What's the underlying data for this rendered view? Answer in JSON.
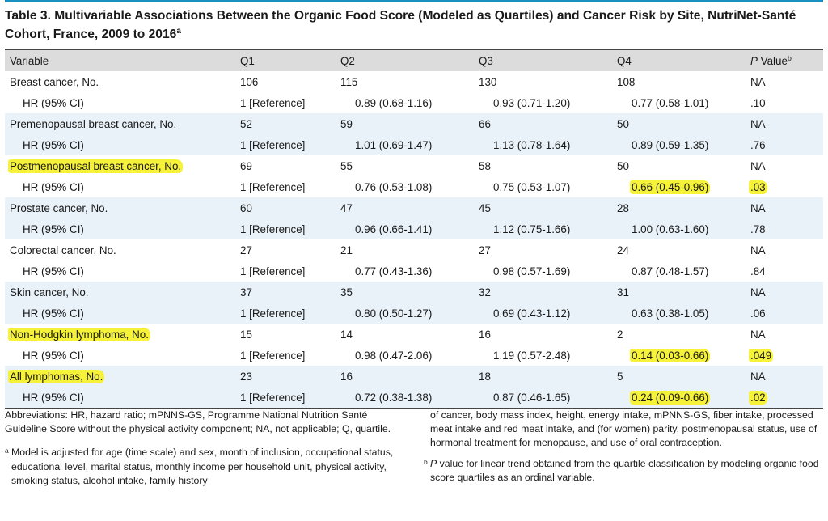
{
  "title": {
    "text": "Table 3. Multivariable Associations Between the Organic Food Score (Modeled as Quartiles) and Cancer Risk by Site, NutriNet-Santé Cohort, France, 2009 to 2016",
    "superscript": "a"
  },
  "table": {
    "headers": {
      "variable": "Variable",
      "q1": "Q1",
      "q2": "Q2",
      "q3": "Q3",
      "q4": "Q4",
      "p_italic": "P",
      "p_rest": " Value",
      "p_superscript": "b"
    },
    "rows": [
      {
        "variable": "Breast cancer, No.",
        "q1": "106",
        "q2": "115",
        "q3": "130",
        "q4": "108",
        "p": "NA"
      },
      {
        "variable": "HR (95% CI)",
        "q1": "1 [Reference]",
        "q2": "0.89 (0.68-1.16)",
        "q3": "0.93 (0.71-1.20)",
        "q4": "0.77 (0.58-1.01)",
        "p": ".10"
      },
      {
        "variable": "Premenopausal breast cancer, No.",
        "q1": "52",
        "q2": "59",
        "q3": "66",
        "q4": "50",
        "p": "NA"
      },
      {
        "variable": "HR (95% CI)",
        "q1": "1 [Reference]",
        "q2": "1.01 (0.69-1.47)",
        "q3": "1.13 (0.78-1.64)",
        "q4": "0.89 (0.59-1.35)",
        "p": ".76"
      },
      {
        "variable": "Postmenopausal breast cancer, No.",
        "q1": "69",
        "q2": "55",
        "q3": "58",
        "q4": "50",
        "p": "NA"
      },
      {
        "variable": "HR (95% CI)",
        "q1": "1 [Reference]",
        "q2": "0.76 (0.53-1.08)",
        "q3": "0.75 (0.53-1.07)",
        "q4": "0.66 (0.45-0.96)",
        "p": ".03"
      },
      {
        "variable": "Prostate cancer, No.",
        "q1": "60",
        "q2": "47",
        "q3": "45",
        "q4": "28",
        "p": "NA"
      },
      {
        "variable": "HR (95% CI)",
        "q1": "1 [Reference]",
        "q2": "0.96 (0.66-1.41)",
        "q3": "1.12 (0.75-1.66)",
        "q4": "1.00 (0.63-1.60)",
        "p": ".78"
      },
      {
        "variable": "Colorectal cancer, No.",
        "q1": "27",
        "q2": "21",
        "q3": "27",
        "q4": "24",
        "p": "NA"
      },
      {
        "variable": "HR (95% CI)",
        "q1": "1 [Reference]",
        "q2": "0.77 (0.43-1.36)",
        "q3": "0.98 (0.57-1.69)",
        "q4": "0.87 (0.48-1.57)",
        "p": ".84"
      },
      {
        "variable": "Skin cancer, No.",
        "q1": "37",
        "q2": "35",
        "q3": "32",
        "q4": "31",
        "p": "NA"
      },
      {
        "variable": "HR (95% CI)",
        "q1": "1 [Reference]",
        "q2": "0.80 (0.50-1.27)",
        "q3": "0.69 (0.43-1.12)",
        "q4": "0.63 (0.38-1.05)",
        "p": ".06"
      },
      {
        "variable": "Non-Hodgkin lymphoma, No.",
        "q1": "15",
        "q2": "14",
        "q3": "16",
        "q4": "2",
        "p": "NA"
      },
      {
        "variable": "HR (95% CI)",
        "q1": "1 [Reference]",
        "q2": "0.98 (0.47-2.06)",
        "q3": "1.19 (0.57-2.48)",
        "q4": "0.14 (0.03-0.66)",
        "p": ".049"
      },
      {
        "variable": "All lymphomas, No.",
        "q1": "23",
        "q2": "16",
        "q3": "18",
        "q4": "5",
        "p": "NA"
      },
      {
        "variable": "HR (95% CI)",
        "q1": "1 [Reference]",
        "q2": "0.72 (0.38-1.38)",
        "q3": "0.87 (0.46-1.65)",
        "q4": "0.24 (0.09-0.66)",
        "p": ".02"
      }
    ]
  },
  "highlights": {
    "color": "#f6f23a",
    "row_labels": [
      "Postmenopausal breast cancer, No.",
      "Non-Hodgkin lymphoma, No.",
      "All lymphomas, No."
    ]
  },
  "footnotes": {
    "abbreviations": "Abbreviations: HR, hazard ratio; mPNNS-GS, Programme National Nutrition Santé Guideline Score without the physical activity component; NA, not applicable; Q, quartile.",
    "a_mark": "a",
    "a_text_left": "Model is adjusted for age (time scale) and sex, month of inclusion, occupational status, educational level, marital status, monthly income per household unit, physical activity, smoking status, alcohol intake, family history",
    "a_text_right": "of cancer, body mass index, height, energy intake, mPNNS-GS, fiber intake, processed meat intake and red meat intake, and (for women) parity, postmenopausal status, use of hormonal treatment for menopause, and use of oral contraception.",
    "b_mark": "b",
    "b_italic": "P",
    "b_text": " value for linear trend obtained from the quartile classification by modeling organic food score quartiles as an ordinal variable."
  },
  "colors": {
    "rule_blue": "#1a8fc2",
    "header_bg": "#dcdcdc",
    "stripe_bg": "#e9f2f9",
    "highlight": "#f6f23a"
  }
}
